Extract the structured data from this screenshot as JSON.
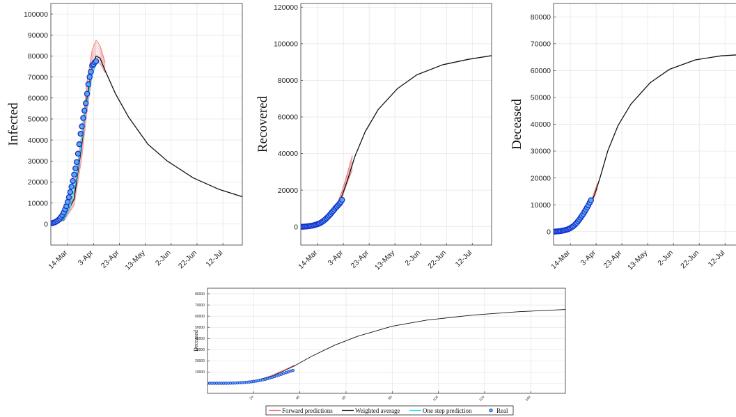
{
  "legend": {
    "forward": "Forward predictions",
    "weighted": "Weighted average",
    "onestep": "One step prediction",
    "real": "Real"
  },
  "colors": {
    "forward": "#e86a6a",
    "forward_band": "#f4b3b3",
    "weighted": "#111111",
    "onestep": "#00e5ff",
    "real_edge": "#1530d0",
    "real_fill": "#5aa8e8"
  },
  "chart_data": [
    {
      "type": "line",
      "ylabel": "Infected",
      "xlabel": "",
      "xticks": [
        "14-Mar",
        "3-Apr",
        "23-Apr",
        "13-May",
        "2-Jun",
        "22-Jun",
        "12-Jul"
      ],
      "xtick_days": [
        13,
        33,
        53,
        73,
        93,
        113,
        133
      ],
      "xlim": [
        0,
        148
      ],
      "yticks": [
        0,
        10000,
        20000,
        30000,
        40000,
        50000,
        60000,
        70000,
        80000,
        90000,
        100000
      ],
      "ylim": [
        -10000,
        105000
      ],
      "grid": true,
      "series": [
        {
          "role": "weighted",
          "x": [
            0,
            10,
            18,
            24,
            28,
            32,
            35,
            38,
            42,
            50,
            60,
            75,
            90,
            110,
            130,
            148
          ],
          "y": [
            0,
            2000,
            12000,
            38000,
            60000,
            75000,
            80000,
            79000,
            73000,
            62000,
            51000,
            38000,
            30000,
            22000,
            16500,
            13000
          ]
        },
        {
          "role": "forward_envelope",
          "x": [
            0,
            10,
            18,
            24,
            28,
            32,
            35,
            38,
            42
          ],
          "y_low": [
            0,
            1500,
            9000,
            32000,
            54000,
            71000,
            77000,
            76500,
            72000
          ],
          "y_high": [
            0,
            2600,
            15500,
            44000,
            68000,
            83000,
            87500,
            85000,
            77000
          ]
        },
        {
          "role": "onestep",
          "x": [
            0,
            5,
            10,
            15,
            20,
            24,
            28,
            32,
            35
          ],
          "y": [
            0,
            500,
            2200,
            8000,
            22000,
            40000,
            58000,
            71000,
            76000
          ]
        },
        {
          "role": "real",
          "x": [
            0,
            1,
            2,
            3,
            4,
            5,
            6,
            7,
            8,
            9,
            10,
            11,
            12,
            13,
            14,
            15,
            16,
            17,
            18,
            19,
            20,
            21,
            22,
            23,
            24,
            25,
            26,
            27,
            28,
            29,
            30,
            31,
            32,
            33,
            34,
            35
          ],
          "y": [
            300,
            400,
            600,
            800,
            1100,
            1500,
            2000,
            2600,
            3400,
            4300,
            5500,
            7000,
            8500,
            10500,
            12800,
            15200,
            17800,
            20500,
            23500,
            26500,
            29500,
            33500,
            38000,
            43000,
            46500,
            50500,
            54000,
            57500,
            62000,
            66500,
            70000,
            72500,
            75500,
            76000,
            77000,
            77500
          ]
        }
      ]
    },
    {
      "type": "line",
      "ylabel": "Recovered",
      "xlabel": "",
      "xticks": [
        "14-Mar",
        "3-Apr",
        "23-Apr",
        "13-May",
        "2-Jun",
        "22-Jun",
        "12-Jul"
      ],
      "xtick_days": [
        13,
        33,
        53,
        73,
        93,
        113,
        133
      ],
      "xlim": [
        0,
        148
      ],
      "yticks": [
        0,
        20000,
        40000,
        60000,
        80000,
        100000,
        120000
      ],
      "ylim": [
        -10000,
        122000
      ],
      "grid": true,
      "series": [
        {
          "role": "weighted",
          "x": [
            0,
            10,
            20,
            28,
            32,
            36,
            42,
            50,
            60,
            75,
            90,
            110,
            130,
            148
          ],
          "y": [
            0,
            300,
            4000,
            11500,
            17000,
            25000,
            38500,
            52000,
            64000,
            75500,
            83000,
            88500,
            91500,
            93500
          ]
        },
        {
          "role": "forward_envelope",
          "x": [
            24,
            28,
            32,
            36,
            40
          ],
          "y_low": [
            7000,
            11000,
            16000,
            24000,
            31000
          ],
          "y_high": [
            7500,
            12500,
            19500,
            29000,
            39000
          ]
        },
        {
          "role": "onestep",
          "x": [
            0,
            10,
            20,
            28,
            32
          ],
          "y": [
            0,
            300,
            3500,
            10500,
            14000
          ]
        },
        {
          "role": "real",
          "x": [
            0,
            1,
            2,
            3,
            4,
            5,
            6,
            7,
            8,
            9,
            10,
            11,
            12,
            13,
            14,
            15,
            16,
            17,
            18,
            19,
            20,
            21,
            22,
            23,
            24,
            25,
            26,
            27,
            28,
            29,
            30,
            31,
            32
          ],
          "y": [
            0,
            0,
            50,
            100,
            150,
            200,
            300,
            400,
            500,
            600,
            800,
            1000,
            1200,
            1400,
            1700,
            2000,
            2400,
            2900,
            3400,
            4000,
            4700,
            5300,
            6100,
            6900,
            7800,
            8600,
            9400,
            10300,
            11000,
            11800,
            12600,
            13500,
            14700
          ]
        }
      ]
    },
    {
      "type": "line",
      "ylabel": "Deceased",
      "xlabel": "",
      "xticks": [
        "14-Mar",
        "3-Apr",
        "23-Apr",
        "13-May",
        "2-Jun",
        "22-Jun",
        "12-Jul"
      ],
      "xtick_days": [
        13,
        33,
        53,
        73,
        93,
        113,
        133
      ],
      "xlim": [
        0,
        148
      ],
      "yticks": [
        0,
        10000,
        20000,
        30000,
        40000,
        50000,
        60000,
        70000,
        80000
      ],
      "ylim": [
        -5000,
        85000
      ],
      "grid": true,
      "series": [
        {
          "role": "weighted",
          "x": [
            0,
            10,
            20,
            28,
            32,
            36,
            42,
            50,
            60,
            75,
            90,
            110,
            130,
            148
          ],
          "y": [
            0,
            300,
            3000,
            9500,
            14000,
            20000,
            30000,
            39500,
            47500,
            55500,
            60500,
            64000,
            65500,
            66000
          ]
        },
        {
          "role": "forward_envelope",
          "x": [
            22,
            26,
            30,
            34
          ],
          "y_low": [
            4200,
            7000,
            11000,
            16000
          ],
          "y_high": [
            4600,
            8000,
            12500,
            18000
          ]
        },
        {
          "role": "onestep",
          "x": [
            0,
            10,
            20,
            28
          ],
          "y": [
            0,
            300,
            3000,
            10000
          ]
        },
        {
          "role": "real",
          "x": [
            0,
            1,
            2,
            3,
            4,
            5,
            6,
            7,
            8,
            9,
            10,
            11,
            12,
            13,
            14,
            15,
            16,
            17,
            18,
            19,
            20,
            21,
            22,
            23,
            24,
            25,
            26,
            27,
            28,
            29
          ],
          "y": [
            0,
            0,
            50,
            80,
            120,
            180,
            250,
            350,
            450,
            550,
            700,
            850,
            1050,
            1300,
            1600,
            1900,
            2300,
            2800,
            3300,
            3900,
            4500,
            5200,
            5900,
            6600,
            7400,
            8200,
            9000,
            9800,
            10800,
            11700
          ]
        }
      ]
    },
    {
      "type": "line",
      "ylabel": "Deceased",
      "xlabel": "",
      "xticks": [
        "20",
        "40",
        "60",
        "80",
        "100",
        "120",
        "140"
      ],
      "xtick_days": [
        20,
        40,
        60,
        80,
        100,
        120,
        140
      ],
      "xlim": [
        0,
        155
      ],
      "yticks": [
        0,
        10000,
        20000,
        30000,
        40000,
        50000,
        60000,
        70000,
        80000
      ],
      "ytick_labels": [
        "",
        "10000",
        "20000",
        "30000",
        "40000",
        "50000",
        "60000",
        "70000",
        "80000"
      ],
      "ylim": [
        -9000,
        85000
      ],
      "grid": true,
      "series": [
        {
          "role": "weighted",
          "x": [
            0,
            10,
            20,
            28,
            33,
            38,
            45,
            55,
            65,
            80,
            95,
            115,
            135,
            155
          ],
          "y": [
            0,
            200,
            2000,
            6500,
            11000,
            16000,
            24000,
            34000,
            42000,
            51000,
            56500,
            61000,
            64000,
            66000
          ]
        },
        {
          "role": "forward_envelope",
          "x": [
            20,
            26,
            32,
            38
          ],
          "y_low": [
            1900,
            5000,
            10000,
            15500
          ],
          "y_high": [
            2100,
            5600,
            11000,
            16500
          ]
        },
        {
          "role": "onestep",
          "x": [
            0,
            10,
            20,
            28
          ],
          "y": [
            0,
            200,
            1800,
            6000
          ]
        },
        {
          "role": "real",
          "x": [
            0,
            1,
            2,
            3,
            4,
            5,
            6,
            7,
            8,
            9,
            10,
            11,
            12,
            13,
            14,
            15,
            16,
            17,
            18,
            19,
            20,
            21,
            22,
            23,
            24,
            25,
            26,
            27,
            28,
            29,
            30,
            31,
            32,
            33,
            34,
            35,
            36,
            37
          ],
          "y": [
            0,
            0,
            0,
            0,
            0,
            0,
            0,
            0,
            0,
            50,
            100,
            150,
            200,
            300,
            400,
            550,
            700,
            900,
            1100,
            1350,
            1650,
            1950,
            2300,
            2700,
            3100,
            3600,
            4100,
            4700,
            5300,
            6000,
            6700,
            7400,
            8100,
            8800,
            9500,
            10200,
            10900,
            11500
          ]
        }
      ]
    }
  ]
}
